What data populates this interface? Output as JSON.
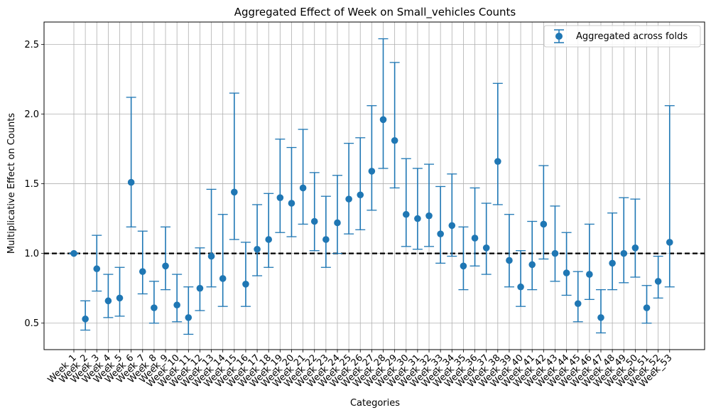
{
  "chart_data": {
    "type": "scatter",
    "title": "Aggregated Effect of Week on Small_vehicles Counts",
    "xlabel": "Categories",
    "ylabel": "Multiplicative Effect on Counts",
    "ylim": [
      0.31,
      2.66
    ],
    "yticks": [
      0.5,
      1.0,
      1.5,
      2.0,
      2.5
    ],
    "ytick_labels": [
      "0.5",
      "1.0",
      "1.5",
      "2.0",
      "2.5"
    ],
    "grid": true,
    "legend_position": "top-right",
    "reference_line": 1.0,
    "categories": [
      "Week_1",
      "Week_2",
      "Week_3",
      "Week_4",
      "Week_5",
      "Week_6",
      "Week_7",
      "Week_8",
      "Week_9",
      "Week_10",
      "Week_11",
      "Week_12",
      "Week_13",
      "Week_14",
      "Week_15",
      "Week_16",
      "Week_17",
      "Week_18",
      "Week_19",
      "Week_20",
      "Week_21",
      "Week_22",
      "Week_23",
      "Week_24",
      "Week_25",
      "Week_26",
      "Week_27",
      "Week_28",
      "Week_29",
      "Week_30",
      "Week_31",
      "Week_32",
      "Week_33",
      "Week_34",
      "Week_35",
      "Week_36",
      "Week_37",
      "Week_38",
      "Week_39",
      "Week_40",
      "Week_41",
      "Week_42",
      "Week_43",
      "Week_44",
      "Week_45",
      "Week_46",
      "Week_47",
      "Week_48",
      "Week_49",
      "Week_50",
      "Week_51",
      "Week_52",
      "Week_53"
    ],
    "series": [
      {
        "name": "Aggregated across folds",
        "values": [
          1.0,
          0.53,
          0.89,
          0.66,
          0.68,
          1.51,
          0.87,
          0.61,
          0.91,
          0.63,
          0.54,
          0.75,
          0.98,
          0.82,
          1.44,
          0.78,
          1.03,
          1.1,
          1.4,
          1.36,
          1.47,
          1.23,
          1.1,
          1.22,
          1.39,
          1.42,
          1.59,
          1.96,
          1.81,
          1.28,
          1.25,
          1.27,
          1.14,
          1.2,
          0.91,
          1.11,
          1.04,
          1.66,
          0.95,
          0.76,
          0.92,
          1.21,
          1.0,
          0.86,
          0.64,
          0.85,
          0.54,
          0.93,
          1.0,
          1.04,
          0.61,
          0.8,
          1.08
        ],
        "lower": [
          1.0,
          0.45,
          0.73,
          0.54,
          0.55,
          1.19,
          0.71,
          0.5,
          0.74,
          0.51,
          0.42,
          0.59,
          0.76,
          0.62,
          1.1,
          0.62,
          0.84,
          0.9,
          1.15,
          1.12,
          1.21,
          1.02,
          0.9,
          1.0,
          1.14,
          1.17,
          1.31,
          1.61,
          1.47,
          1.05,
          1.03,
          1.05,
          0.93,
          0.98,
          0.74,
          0.91,
          0.85,
          1.35,
          0.76,
          0.62,
          0.74,
          0.96,
          0.8,
          0.7,
          0.51,
          0.67,
          0.43,
          0.74,
          0.79,
          0.83,
          0.5,
          0.68,
          0.76
        ],
        "upper": [
          1.0,
          0.66,
          1.13,
          0.85,
          0.9,
          2.12,
          1.16,
          0.8,
          1.19,
          0.85,
          0.76,
          1.04,
          1.46,
          1.28,
          2.15,
          1.08,
          1.35,
          1.43,
          1.82,
          1.76,
          1.89,
          1.58,
          1.41,
          1.56,
          1.79,
          1.83,
          2.06,
          2.54,
          2.37,
          1.68,
          1.61,
          1.64,
          1.48,
          1.57,
          1.19,
          1.47,
          1.36,
          2.22,
          1.28,
          1.02,
          1.23,
          1.63,
          1.34,
          1.15,
          0.87,
          1.21,
          0.74,
          1.29,
          1.4,
          1.39,
          0.77,
          0.98,
          2.06
        ]
      }
    ],
    "color": "#1f77b4"
  }
}
